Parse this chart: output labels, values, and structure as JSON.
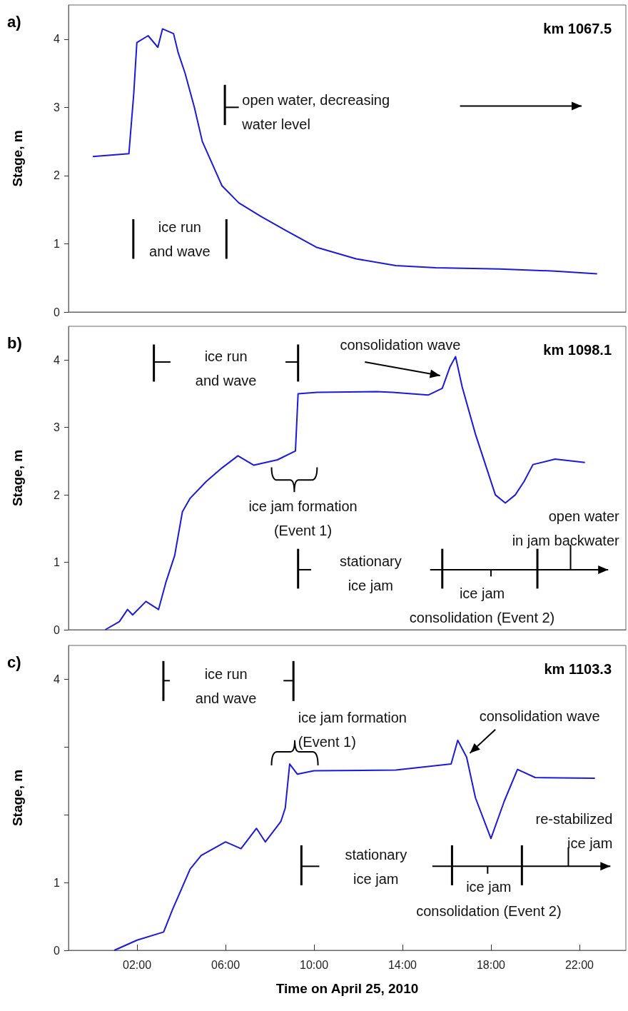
{
  "chart_data": [
    {
      "type": "line",
      "title": "km 1067.5",
      "ylabel": "Stage, m",
      "color": "#1a1adc",
      "marker": "none",
      "xlim": [
        -1.1,
        24.1
      ],
      "ylim": [
        0,
        4.5
      ],
      "yticks": [
        0,
        1,
        2,
        3,
        4
      ],
      "tick_labels": "y",
      "x": [
        0,
        1.63,
        1.85,
        1.99,
        2.5,
        2.94,
        3.15,
        3.65,
        3.86,
        4.17,
        4.59,
        4.95,
        5.84,
        6.6,
        7.6,
        8.7,
        10.1,
        11.9,
        13.7,
        15.5,
        18.4,
        20.9,
        22.8
      ],
      "values": [
        2.28,
        2.32,
        3.2,
        3.95,
        4.05,
        3.88,
        4.15,
        4.08,
        3.8,
        3.5,
        3.0,
        2.5,
        1.85,
        1.6,
        1.4,
        1.2,
        0.95,
        0.78,
        0.68,
        0.65,
        0.63,
        0.6,
        0.56
      ],
      "annotations": [
        "a)",
        "ice run\nand wave",
        "open water, decreasing\nwater level"
      ]
    },
    {
      "type": "line",
      "title": "km 1098.1",
      "ylabel": "Stage, m",
      "color": "#1a1adc",
      "marker": "none",
      "xlim": [
        -1.1,
        24.1
      ],
      "ylim": [
        0,
        4.5
      ],
      "yticks": [
        0,
        1,
        2,
        3,
        4
      ],
      "tick_labels": "y",
      "x": [
        0.56,
        1.2,
        1.57,
        1.8,
        2.4,
        2.97,
        3.3,
        3.7,
        4.05,
        4.4,
        5.13,
        5.84,
        6.56,
        7.28,
        8.35,
        9.16,
        9.28,
        10.14,
        12.83,
        13.55,
        15.16,
        15.8,
        16.15,
        16.4,
        16.7,
        17.3,
        18.2,
        18.65,
        19.1,
        19.5,
        19.9,
        20.9,
        22.25
      ],
      "values": [
        0,
        0.12,
        0.3,
        0.22,
        0.42,
        0.3,
        0.7,
        1.1,
        1.75,
        1.95,
        2.2,
        2.4,
        2.58,
        2.44,
        2.52,
        2.65,
        3.5,
        3.52,
        3.53,
        3.52,
        3.48,
        3.58,
        3.9,
        4.05,
        3.6,
        2.9,
        2.0,
        1.88,
        2.0,
        2.2,
        2.45,
        2.53,
        2.48
      ],
      "annotations": [
        "b)",
        "ice run\nand wave",
        "consolidation wave",
        "ice jam formation\n(Event 1)",
        "stationary\nice jam",
        "ice jam\nconsolidation (Event 2)",
        "open water\nin jam backwater"
      ]
    },
    {
      "type": "line",
      "title": "km 1103.3",
      "ylabel": "Stage, m",
      "xlabel": "Time on April 25, 2010",
      "color": "#1a1adc",
      "marker": "none",
      "xlim": [
        -1.1,
        24.1
      ],
      "ylim": [
        0,
        4.5
      ],
      "xticks": [
        {
          "value": 2,
          "label": "02:00"
        },
        {
          "value": 6,
          "label": "06:00"
        },
        {
          "value": 10,
          "label": "10:00"
        },
        {
          "value": 14,
          "label": "14:00"
        },
        {
          "value": 18,
          "label": "18:00"
        },
        {
          "value": 22,
          "label": "22:00"
        }
      ],
      "yticks": [
        0,
        1,
        {
          "value": 2,
          "label": null
        },
        {
          "value": 3,
          "label": null
        },
        4
      ],
      "x": [
        0.97,
        2.0,
        3.2,
        3.6,
        4.4,
        4.9,
        6.0,
        6.7,
        7.4,
        7.8,
        8.5,
        8.7,
        8.9,
        9.25,
        10.0,
        13.7,
        16.2,
        16.5,
        16.9,
        17.3,
        18.0,
        18.6,
        19.2,
        20.0,
        22.7
      ],
      "values": [
        0,
        0.15,
        0.27,
        0.6,
        1.2,
        1.4,
        1.6,
        1.5,
        1.8,
        1.6,
        1.9,
        2.1,
        2.75,
        2.6,
        2.65,
        2.66,
        2.75,
        3.1,
        2.85,
        2.25,
        1.65,
        2.2,
        2.67,
        2.55,
        2.54
      ],
      "annotations": [
        "c)",
        "ice run\nand wave",
        "ice jam formation\n(Event 1)",
        "consolidation wave",
        "re-stabilized\nice jam",
        "stationary\nice jam",
        "ice jam\nconsolidation (Event 2)"
      ]
    }
  ]
}
